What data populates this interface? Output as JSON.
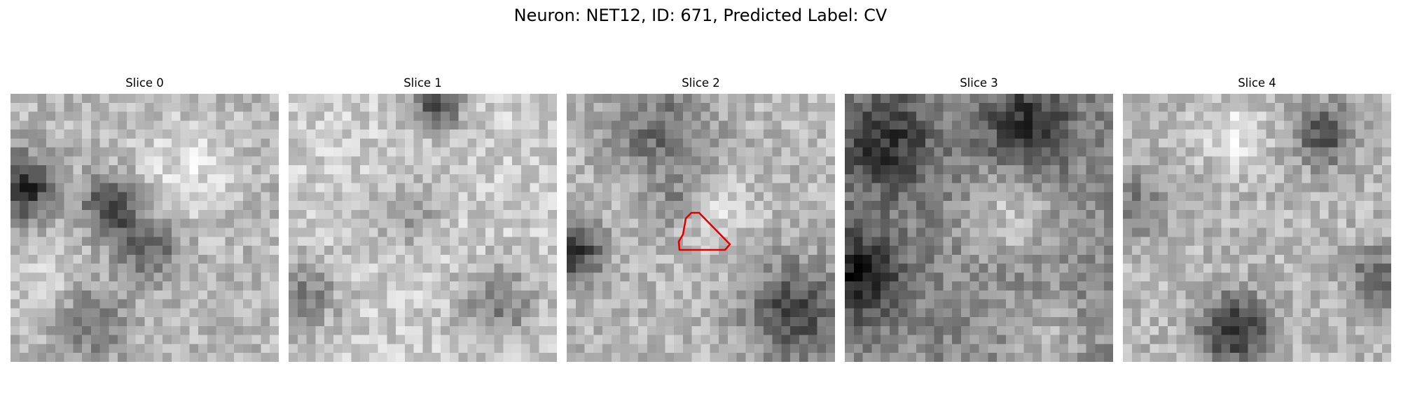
{
  "figure": {
    "title": "Neuron: NET12, ID: 671, Predicted Label: CV"
  },
  "panels": [
    {
      "label": "Slice 0",
      "seed": 11,
      "pattern": "blob-left"
    },
    {
      "label": "Slice 1",
      "seed": 23,
      "pattern": "light-center"
    },
    {
      "label": "Slice 2",
      "seed": 37,
      "pattern": "dark-bottom-right",
      "roi": true
    },
    {
      "label": "Slice 3",
      "seed": 41,
      "pattern": "ring-center"
    },
    {
      "label": "Slice 4",
      "seed": 53,
      "pattern": "dark-bottom-center"
    }
  ],
  "roi": {
    "panel": 2,
    "color": "#e00000"
  },
  "colormap": "gray"
}
